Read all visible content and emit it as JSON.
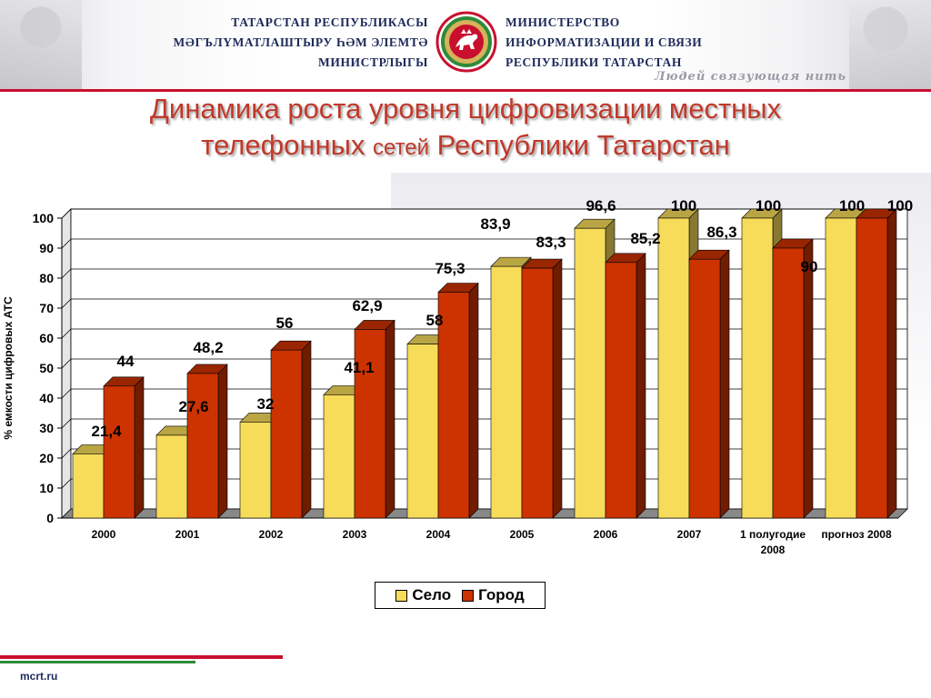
{
  "header": {
    "left_lines": [
      "ТАТАРСТАН РЕСПУБЛИКАСЫ",
      "МӘГЪЛҮМАТЛАШТЫРУ ҺӘМ  ЭЛЕМТӘ",
      "МИНИСТРЛЫГЫ"
    ],
    "right_lines": [
      "МИНИСТЕРСТВО",
      "ИНФОРМАТИЗАЦИИ И СВЯЗИ",
      "РЕСПУБЛИКИ ТАТАРСТАН"
    ],
    "slogan": "Людей связующая нить",
    "emblem_icon": "tatarstan-emblem-icon",
    "accent_color": "#c8102e"
  },
  "title": {
    "line1": "Динамика роста уровня цифровизации местных",
    "line2_a": "телефонных ",
    "line2_b": "сетей",
    "line2_c": " Республики Татарстан"
  },
  "chart_data": {
    "type": "bar",
    "ylabel": "% емкости цифровых АТС",
    "ylim": [
      0,
      100
    ],
    "yticks": [
      0,
      10,
      20,
      30,
      40,
      50,
      60,
      70,
      80,
      90,
      100
    ],
    "grid": true,
    "legend_position": "bottom",
    "categories": [
      [
        "2000"
      ],
      [
        "2001"
      ],
      [
        "2002"
      ],
      [
        "2003"
      ],
      [
        "2004"
      ],
      [
        "2005"
      ],
      [
        "2006"
      ],
      [
        "2007"
      ],
      [
        "1 полугодие",
        "2008"
      ],
      [
        "прогноз 2008"
      ]
    ],
    "series": [
      {
        "name": "Село",
        "color": "#f7dc5a",
        "values": [
          21.4,
          27.6,
          32,
          41.1,
          58,
          83.9,
          96.6,
          100,
          100,
          100
        ],
        "labels": [
          "21,4",
          "27,6",
          "32",
          "41,1",
          "58",
          "83,9",
          "96,6",
          "100",
          "100",
          "100"
        ]
      },
      {
        "name": "Город",
        "color": "#cc3300",
        "values": [
          44,
          48.2,
          56,
          62.9,
          75.3,
          83.3,
          85.2,
          86.3,
          90,
          100
        ],
        "labels": [
          "44",
          "48,2",
          "56",
          "62,9",
          "75,3",
          "83,3",
          "85,2",
          "86,3",
          "90",
          "100"
        ]
      }
    ]
  },
  "footer": {
    "site": "mcrt.ru"
  }
}
